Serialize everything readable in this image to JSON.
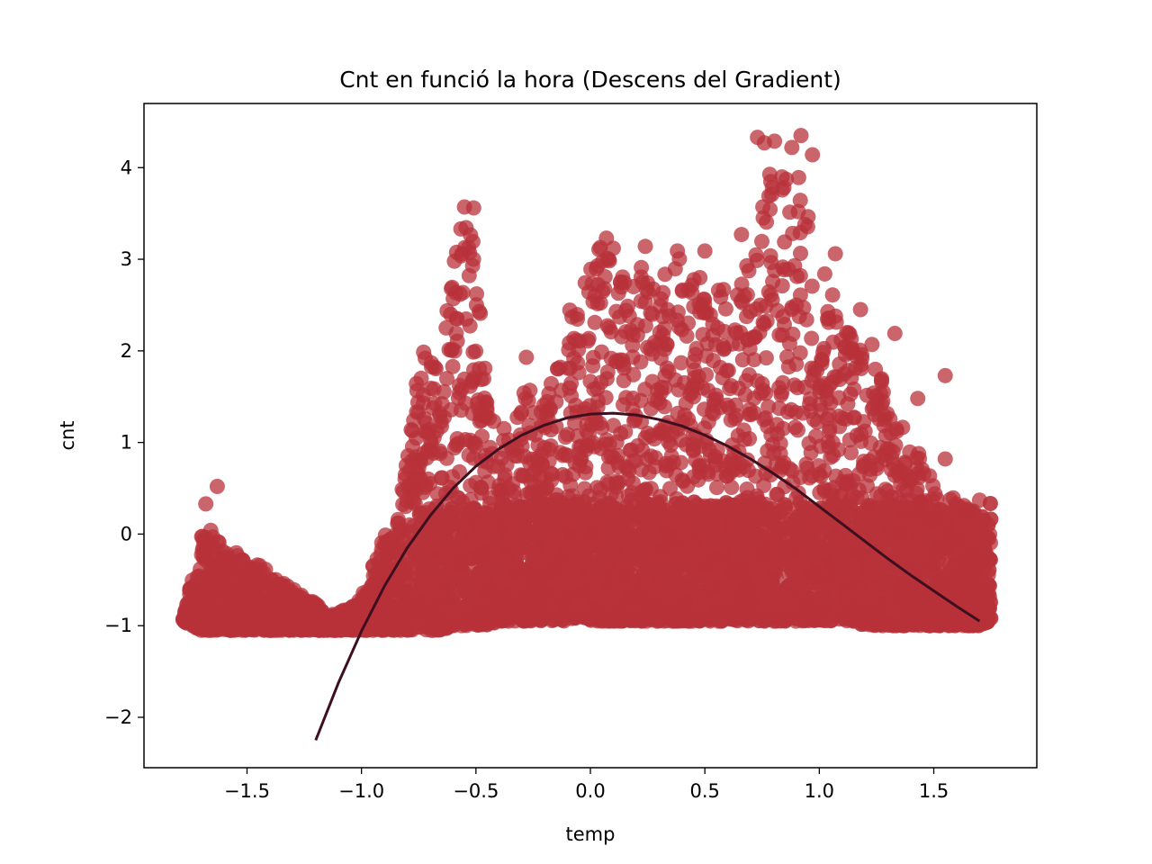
{
  "chart_data": {
    "type": "scatter",
    "title": "Cnt en funció la hora (Descens del Gradient)",
    "xlabel": "temp",
    "ylabel": "cnt",
    "xlim": [
      -1.95,
      1.95
    ],
    "ylim": [
      -2.55,
      4.7
    ],
    "x_ticks": [
      -1.5,
      -1.0,
      -0.5,
      0.0,
      0.5,
      1.0,
      1.5
    ],
    "x_tick_labels": [
      "−1.5",
      "−1.0",
      "−0.5",
      "0.0",
      "0.5",
      "1.0",
      "1.5"
    ],
    "y_ticks": [
      -2,
      -1,
      0,
      1,
      2,
      3,
      4
    ],
    "y_tick_labels": [
      "−2",
      "−1",
      "0",
      "1",
      "2",
      "3",
      "4"
    ],
    "grid": false,
    "colors": {
      "points": "#b8323a",
      "fit_line": "#3d0f1f",
      "axes": "#000000"
    },
    "envelope": {
      "description_x": [
        -1.78,
        -1.7,
        -1.65,
        -1.6,
        -1.55,
        -1.5,
        -1.45,
        -1.4,
        -1.35,
        -1.3,
        -1.25,
        -1.2,
        -1.15,
        -1.1,
        -1.05,
        -1.0,
        -0.95,
        -0.9,
        -0.85,
        -0.8,
        -0.75,
        -0.7,
        -0.65,
        -0.6,
        -0.55,
        -0.5,
        -0.45,
        -0.4,
        -0.35,
        -0.3,
        -0.25,
        -0.2,
        -0.15,
        -0.1,
        -0.05,
        0.0,
        0.05,
        0.1,
        0.15,
        0.2,
        0.25,
        0.3,
        0.35,
        0.4,
        0.45,
        0.5,
        0.55,
        0.6,
        0.65,
        0.7,
        0.75,
        0.8,
        0.85,
        0.9,
        0.95,
        1.0,
        1.05,
        1.1,
        1.15,
        1.2,
        1.25,
        1.3,
        1.35,
        1.4,
        1.45,
        1.5,
        1.55,
        1.6,
        1.65,
        1.7,
        1.75
      ],
      "upper": [
        -0.9,
        0.0,
        0.05,
        -0.2,
        -0.15,
        -0.3,
        -0.3,
        -0.4,
        -0.5,
        -0.6,
        -0.65,
        -0.75,
        -0.9,
        -0.85,
        -0.8,
        -0.7,
        -0.3,
        0.0,
        0.0,
        0.9,
        1.9,
        2.1,
        2.2,
        3.0,
        3.5,
        3.3,
        1.6,
        1.2,
        1.1,
        1.6,
        1.7,
        1.4,
        2.0,
        2.6,
        2.7,
        2.9,
        3.2,
        2.9,
        2.8,
        3.0,
        2.9,
        2.8,
        2.9,
        3.1,
        2.8,
        2.9,
        2.8,
        2.6,
        2.7,
        3.3,
        3.6,
        4.3,
        4.2,
        4.0,
        3.7,
        3.0,
        2.7,
        2.3,
        2.2,
        2.0,
        1.8,
        1.6,
        1.2,
        1.1,
        0.8,
        0.6,
        0.5,
        0.4,
        0.3,
        0.2,
        0.0
      ],
      "lower": [
        -0.95,
        -1.05,
        -1.05,
        -1.05,
        -1.05,
        -1.05,
        -1.05,
        -1.05,
        -1.05,
        -1.05,
        -1.05,
        -1.05,
        -1.05,
        -1.05,
        -1.05,
        -1.05,
        -1.05,
        -1.05,
        -1.05,
        -1.05,
        -1.05,
        -1.05,
        -1.05,
        -1.0,
        -1.0,
        -1.0,
        -1.0,
        -0.95,
        -0.95,
        -0.95,
        -0.95,
        -0.95,
        -0.95,
        -0.95,
        -0.9,
        -0.95,
        -0.95,
        -0.95,
        -0.95,
        -0.95,
        -0.95,
        -0.95,
        -0.95,
        -0.95,
        -0.95,
        -0.95,
        -0.95,
        -0.95,
        -0.95,
        -0.95,
        -0.95,
        -0.95,
        -0.95,
        -0.95,
        -0.95,
        -0.95,
        -0.95,
        -0.95,
        -0.95,
        -1.0,
        -1.0,
        -1.0,
        -1.0,
        -1.0,
        -1.0,
        -1.0,
        -1.0,
        -1.0,
        -1.0,
        -1.0,
        -0.95
      ]
    },
    "outliers": [
      {
        "x": -1.68,
        "y": 0.33
      },
      {
        "x": -1.63,
        "y": 0.52
      },
      {
        "x": -0.63,
        "y": 2.25
      },
      {
        "x": -0.55,
        "y": 3.57
      },
      {
        "x": -0.51,
        "y": 3.56
      },
      {
        "x": -0.28,
        "y": 1.93
      },
      {
        "x": 0.02,
        "y": 2.6
      },
      {
        "x": 0.07,
        "y": 3.23
      },
      {
        "x": 0.1,
        "y": 3.12
      },
      {
        "x": 0.24,
        "y": 3.14
      },
      {
        "x": 0.38,
        "y": 3.09
      },
      {
        "x": 0.5,
        "y": 3.09
      },
      {
        "x": 0.66,
        "y": 3.27
      },
      {
        "x": 0.73,
        "y": 4.33
      },
      {
        "x": 0.76,
        "y": 4.27
      },
      {
        "x": 0.88,
        "y": 4.22
      },
      {
        "x": 0.92,
        "y": 4.35
      },
      {
        "x": 0.97,
        "y": 4.14
      },
      {
        "x": 1.07,
        "y": 3.06
      },
      {
        "x": 1.18,
        "y": 2.45
      },
      {
        "x": 1.23,
        "y": 2.07
      },
      {
        "x": 1.33,
        "y": 2.19
      },
      {
        "x": 1.43,
        "y": 1.48
      },
      {
        "x": 1.55,
        "y": 1.73
      },
      {
        "x": 1.55,
        "y": 0.82
      },
      {
        "x": 1.7,
        "y": 0.37
      },
      {
        "x": -0.77,
        "y": 0.49
      },
      {
        "x": -0.48,
        "y": 1.3
      }
    ],
    "fit_curve": {
      "name": "",
      "x": [
        -1.2,
        -1.1,
        -1.0,
        -0.9,
        -0.8,
        -0.7,
        -0.6,
        -0.5,
        -0.4,
        -0.3,
        -0.2,
        -0.1,
        0.0,
        0.1,
        0.2,
        0.3,
        0.4,
        0.5,
        0.6,
        0.7,
        0.8,
        0.9,
        1.0,
        1.1,
        1.2,
        1.3,
        1.4,
        1.5,
        1.6,
        1.7
      ],
      "y": [
        -2.25,
        -1.62,
        -1.06,
        -0.57,
        -0.15,
        0.2,
        0.5,
        0.74,
        0.93,
        1.08,
        1.19,
        1.27,
        1.31,
        1.32,
        1.3,
        1.25,
        1.18,
        1.08,
        0.96,
        0.82,
        0.66,
        0.49,
        0.3,
        0.11,
        -0.08,
        -0.27,
        -0.45,
        -0.62,
        -0.79,
        -0.95
      ]
    }
  }
}
